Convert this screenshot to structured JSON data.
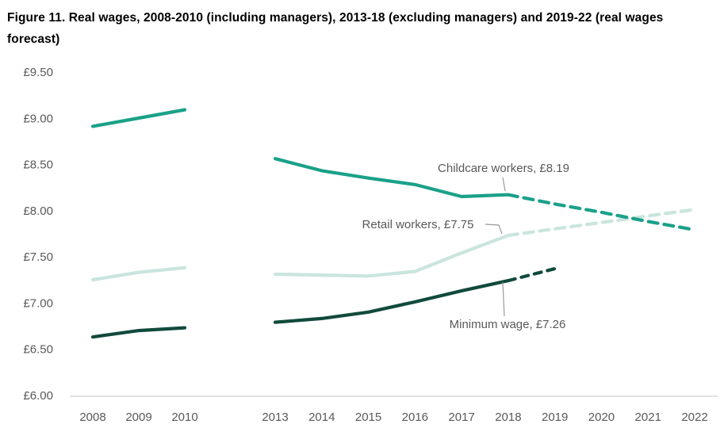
{
  "figure": {
    "title": "Figure 11. Real wages, 2008-2010 (including managers), 2013-18 (excluding managers) and 2019-22 (real wages forecast)"
  },
  "colors": {
    "background": "#ffffff",
    "title_text": "#000000",
    "axis_text": "#595959",
    "annotation_text": "#595959",
    "axis_line": "#d9d9d9",
    "connector_line": "#9a9a9a",
    "childcare_teal": "#1aa189",
    "retail_light_teal": "#c9e5de",
    "minimum_wage_dark_green": "#114a3c"
  },
  "chart_data": {
    "type": "line",
    "title": "Real wages, 2008-2010 (including managers), 2013-18 (excluding managers) and 2019-22 (real wages forecast)",
    "xlabel": "",
    "ylabel": "",
    "ylim": [
      6.0,
      9.5
    ],
    "grid": false,
    "legend_position": "none",
    "y_ticks": [
      {
        "label": "£9.50",
        "value": 9.5
      },
      {
        "label": "£9.00",
        "value": 9.0
      },
      {
        "label": "£8.50",
        "value": 8.5
      },
      {
        "label": "£8.00",
        "value": 8.0
      },
      {
        "label": "£7.50",
        "value": 7.5
      },
      {
        "label": "£7.00",
        "value": 7.0
      },
      {
        "label": "£6.50",
        "value": 6.5
      },
      {
        "label": "£6.00",
        "value": 6.0
      }
    ],
    "x_ticks": [
      "2008",
      "2009",
      "2010",
      "2013",
      "2014",
      "2015",
      "2016",
      "2017",
      "2018",
      "2019",
      "2020",
      "2021",
      "2022"
    ],
    "x_axis_gap": "2011-2012 omitted",
    "series": [
      {
        "id": "retail",
        "name": "Retail workers",
        "color": "#c9e5de",
        "segments": [
          {
            "style": "solid",
            "years": [
              2008,
              2009,
              2010
            ],
            "values": [
              7.27,
              7.35,
              7.4
            ]
          },
          {
            "style": "solid",
            "years": [
              2013,
              2014,
              2015,
              2016,
              2017,
              2018
            ],
            "values": [
              7.33,
              7.32,
              7.31,
              7.36,
              7.56,
              7.75
            ]
          },
          {
            "style": "dashed",
            "years": [
              2018,
              2019,
              2020,
              2021,
              2022
            ],
            "values": [
              7.75,
              7.82,
              7.89,
              7.96,
              8.03
            ]
          }
        ]
      },
      {
        "id": "childcare",
        "name": "Childcare workers",
        "color": "#1aa189",
        "segments": [
          {
            "style": "solid",
            "years": [
              2008,
              2009,
              2010
            ],
            "values": [
              8.93,
              9.02,
              9.11
            ]
          },
          {
            "style": "solid",
            "years": [
              2013,
              2014,
              2015,
              2016,
              2017,
              2018
            ],
            "values": [
              8.58,
              8.45,
              8.37,
              8.3,
              8.17,
              8.19
            ]
          },
          {
            "style": "dashed",
            "years": [
              2018,
              2019,
              2020,
              2021,
              2022
            ],
            "values": [
              8.19,
              8.09,
              8.0,
              7.9,
              7.81
            ]
          }
        ]
      },
      {
        "id": "minimum_wage",
        "name": "Minimum wage",
        "color": "#114a3c",
        "segments": [
          {
            "style": "solid",
            "years": [
              2008,
              2009,
              2010
            ],
            "values": [
              6.65,
              6.72,
              6.75
            ]
          },
          {
            "style": "solid",
            "years": [
              2013,
              2014,
              2015,
              2016,
              2017,
              2018
            ],
            "values": [
              6.81,
              6.85,
              6.92,
              7.03,
              7.15,
              7.26
            ]
          },
          {
            "style": "dashed",
            "years": [
              2018,
              2019
            ],
            "values": [
              7.26,
              7.39
            ]
          }
        ]
      }
    ],
    "annotations": [
      {
        "id": "childcare",
        "text": "Childcare workers, £8.19",
        "series": "Childcare workers",
        "year": 2018,
        "value": 8.19
      },
      {
        "id": "retail",
        "text": "Retail workers, £7.75",
        "series": "Retail workers",
        "year": 2018,
        "value": 7.75
      },
      {
        "id": "minimum_wage",
        "text": "Minimum wage, £7.26",
        "series": "Minimum wage",
        "year": 2018,
        "value": 7.26
      }
    ]
  }
}
